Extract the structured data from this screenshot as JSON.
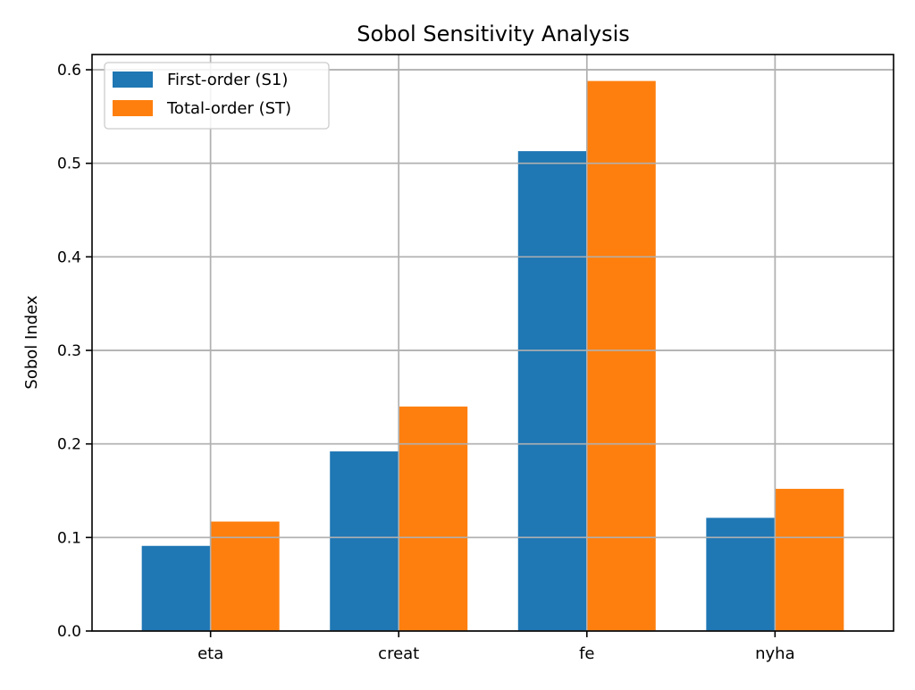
{
  "chart_data": {
    "type": "bar",
    "title": "Sobol Sensitivity Analysis",
    "xlabel": "",
    "ylabel": "Sobol Index",
    "categories": [
      "eta",
      "creat",
      "fe",
      "nyha"
    ],
    "series": [
      {
        "name": "First-order (S1)",
        "color": "#1f77b4",
        "values": [
          0.091,
          0.192,
          0.513,
          0.121
        ]
      },
      {
        "name": "Total-order (ST)",
        "color": "#ff7f0e",
        "values": [
          0.117,
          0.24,
          0.588,
          0.152
        ]
      }
    ],
    "ylim": [
      0,
      0.6
    ],
    "yticks": [
      "0.0",
      "0.1",
      "0.2",
      "0.3",
      "0.4",
      "0.5",
      "0.6"
    ],
    "grid": true,
    "legend_position": "top-left"
  }
}
